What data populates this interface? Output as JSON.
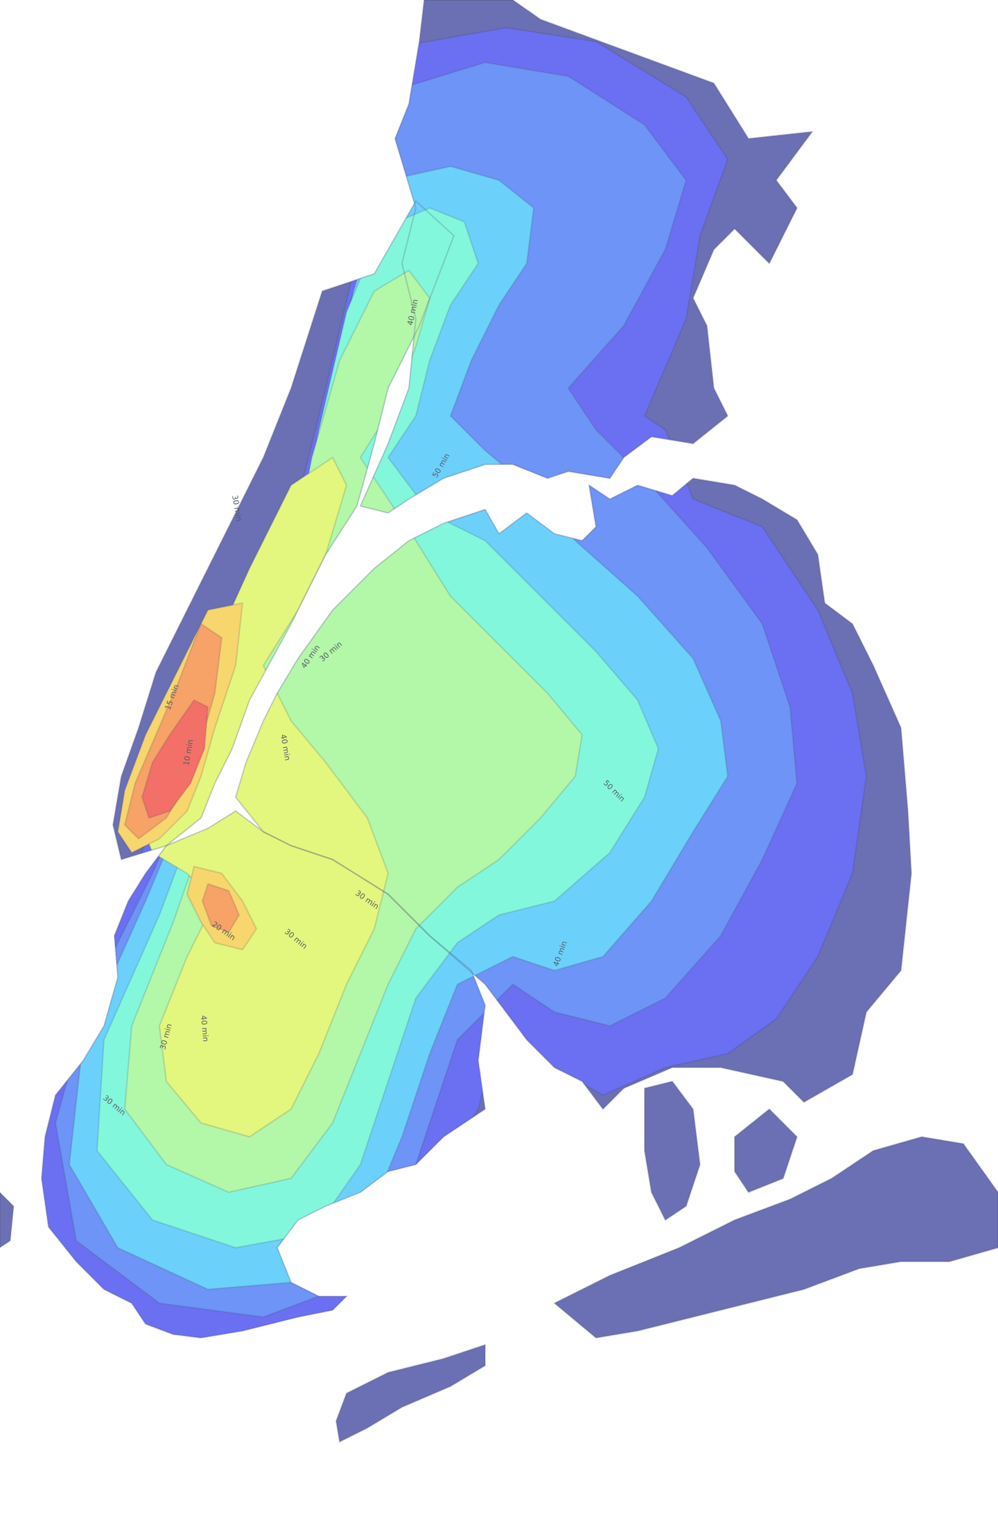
{
  "contour_labels": [
    {
      "name": "contour-label-top-40",
      "text": "40 min"
    },
    {
      "name": "contour-label-upper-30",
      "text": "30 min"
    },
    {
      "name": "contour-label-upper-50",
      "text": "50 min"
    },
    {
      "name": "contour-label-midtown-15",
      "text": "15 min"
    },
    {
      "name": "contour-label-midtown-10",
      "text": "10 min"
    },
    {
      "name": "contour-label-river-40",
      "text": "40 min"
    },
    {
      "name": "contour-label-queens-30",
      "text": "30 min"
    },
    {
      "name": "contour-label-queens-40",
      "text": "40 min"
    },
    {
      "name": "contour-label-queens-50",
      "text": "50 min"
    },
    {
      "name": "contour-label-brooklyn-20",
      "text": "20 min"
    },
    {
      "name": "contour-label-brooklyn-30a",
      "text": "30 min"
    },
    {
      "name": "contour-label-brooklyn-30b",
      "text": "30 min"
    },
    {
      "name": "contour-label-brooklyn-30c",
      "text": "30 min"
    },
    {
      "name": "contour-label-brooklyn-40a",
      "text": "40 min"
    },
    {
      "name": "contour-label-queens-40b",
      "text": "40 min"
    },
    {
      "name": "contour-label-sw-30",
      "text": "30 min"
    }
  ],
  "colors": {
    "band_60_plus": "#6b6fb3",
    "band_50": "#6b70f2",
    "band_45": "#6d94f6",
    "band_40": "#6bd1fb",
    "band_35": "#83f7dc",
    "band_30": "#b3f7a8",
    "band_25": "#e3f77e",
    "band_20": "#f7d66d",
    "band_15": "#f7a266",
    "band_10": "#f27068"
  }
}
